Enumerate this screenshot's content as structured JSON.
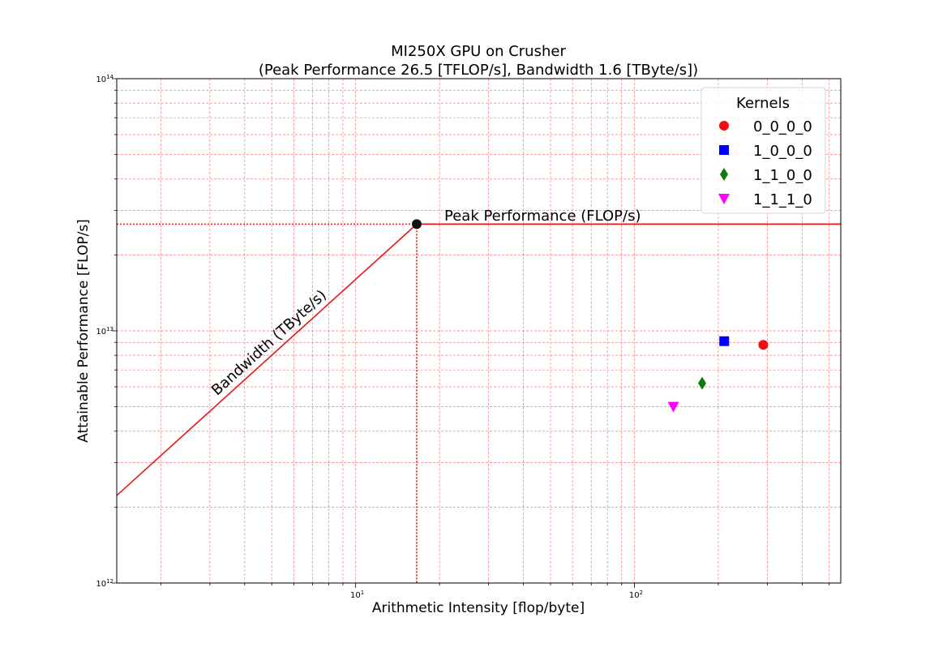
{
  "chart_data": {
    "type": "scatter",
    "title_line1": "MI250X GPU on Crusher",
    "title_line2": "(Peak Performance 26.5  [TFLOP/s], Bandwidth 1.6 [TByte/s])",
    "xlabel": "Arithmetic Intensity [flop/byte]",
    "ylabel": "Attainable Performance [FLOP/s]",
    "x_scale": "log",
    "y_scale": "log",
    "xlim": [
      1.39,
      550
    ],
    "ylim": [
      1000000000000.0,
      100000000000000.0
    ],
    "x_ticks": [
      {
        "value": 10,
        "base": "10",
        "exp": "1"
      },
      {
        "value": 100,
        "base": "10",
        "exp": "2"
      }
    ],
    "y_ticks": [
      {
        "value": 1000000000000.0,
        "base": "10",
        "exp": "12"
      },
      {
        "value": 10000000000000.0,
        "base": "10",
        "exp": "13"
      },
      {
        "value": 100000000000000.0,
        "base": "10",
        "exp": "14"
      }
    ],
    "grid": true,
    "roofline": {
      "peak_flops": 26500000000000.0,
      "bandwidth": 1600000000000.0,
      "ridge_point": 16.5625,
      "peak_label": "Peak Performance (FLOP/s)",
      "bandwidth_label": "Bandwidth (TByte/s)",
      "line_color": "#e41a1c",
      "ridge_marker_color": "#111111"
    },
    "legend": {
      "title": "Kernels",
      "position": "top-right"
    },
    "series": [
      {
        "name": "0_0_0_0",
        "marker": "circle",
        "color": "#ee1111",
        "x": 290,
        "y": 8800000000000.0
      },
      {
        "name": "1_0_0_0",
        "marker": "square",
        "color": "#0000ff",
        "x": 210,
        "y": 9100000000000.0
      },
      {
        "name": "1_1_0_0",
        "marker": "diamond",
        "color": "#117711",
        "x": 175,
        "y": 6200000000000.0
      },
      {
        "name": "1_1_1_0",
        "marker": "triangle-down",
        "color": "#ff00ff",
        "x": 138,
        "y": 5000000000000.0
      }
    ]
  }
}
